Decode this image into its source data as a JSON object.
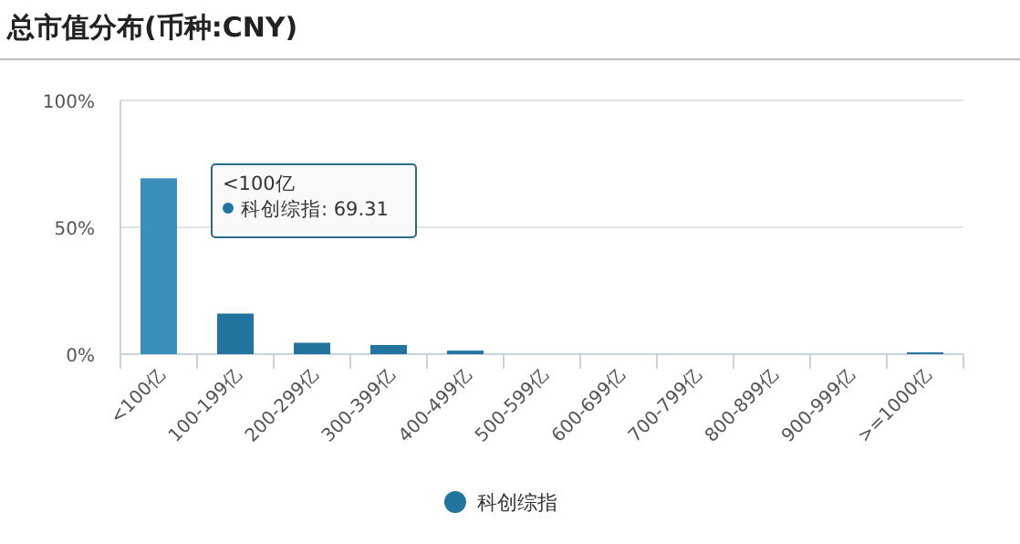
{
  "chart_data": {
    "type": "bar",
    "title": "总市值分布(币种:CNY)",
    "categories": [
      "<100亿",
      "100-199亿",
      "200-299亿",
      "300-399亿",
      "400-499亿",
      "500-599亿",
      "600-699亿",
      "700-799亿",
      "800-899亿",
      "900-999亿",
      ">=1000亿"
    ],
    "series": [
      {
        "name": "科创综指",
        "color": "#21759f",
        "colors": [
          "#3a8fbd",
          "#21759f",
          "#21759f",
          "#21759f",
          "#21759f",
          "#21759f",
          "#21759f",
          "#21759f",
          "#21759f",
          "#21759f",
          "#21759f"
        ],
        "values": [
          69.31,
          16,
          4.5,
          3.6,
          1.4,
          0,
          0,
          0,
          0,
          0,
          0.7
        ]
      }
    ],
    "ylim": [
      0,
      100
    ],
    "yticks": [
      {
        "value": 0,
        "label": "0%"
      },
      {
        "value": 50,
        "label": "50%"
      },
      {
        "value": 100,
        "label": "100%"
      }
    ],
    "grid": "y",
    "legend": "bottom",
    "annotations": [
      "<100亿",
      "科创综指: 69.31"
    ]
  }
}
